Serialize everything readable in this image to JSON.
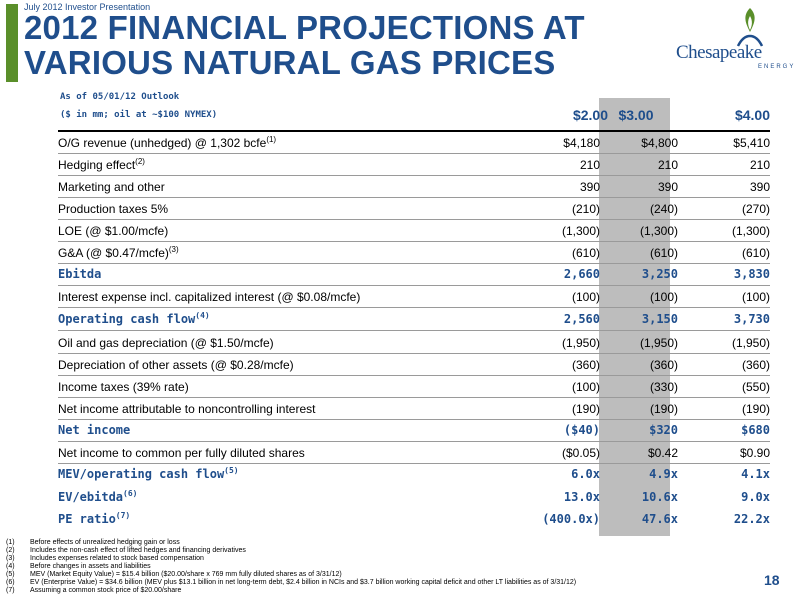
{
  "header": {
    "subhead": "July 2012 Investor Presentation",
    "title_line1": "2012 FINANCIAL PROJECTIONS AT",
    "title_line2": "VARIOUS NATURAL GAS PRICES",
    "logo_word": "Chesapeake",
    "logo_sub": "ENERGY"
  },
  "table": {
    "outlook_line1": "As of 05/01/12 Outlook",
    "outlook_line2": "($ in mm; oil at ~$100 NYMEX)",
    "columns": [
      "$2.00",
      "$3.00",
      "$4.00"
    ],
    "rows": [
      {
        "label": "O/G revenue (unhedged) @ 1,302 bcfe",
        "sup": "(1)",
        "values": [
          "$4,180",
          "$4,800",
          "$5,410"
        ]
      },
      {
        "label": "Hedging effect",
        "sup": "(2)",
        "values": [
          "210",
          "210",
          "210"
        ]
      },
      {
        "label": "Marketing and other",
        "sup": "",
        "values": [
          "390",
          "390",
          "390"
        ]
      },
      {
        "label": "Production taxes 5%",
        "sup": "",
        "values": [
          "(210)",
          "(240)",
          "(270)"
        ]
      },
      {
        "label": "LOE (@ $1.00/mcfe)",
        "sup": "",
        "values": [
          "(1,300)",
          "(1,300)",
          "(1,300)"
        ]
      },
      {
        "label": "G&A (@ $0.47/mcfe)",
        "sup": "(3)",
        "values": [
          "(610)",
          "(610)",
          "(610)"
        ]
      },
      {
        "label": "Ebitda",
        "sup": "",
        "values": [
          "2,660",
          "3,250",
          "3,830"
        ],
        "em": true
      },
      {
        "label": "Interest expense incl. capitalized interest (@ $0.08/mcfe)",
        "sup": "",
        "values": [
          "(100)",
          "(100)",
          "(100)"
        ]
      },
      {
        "label": "Operating cash flow",
        "sup": "(4)",
        "values": [
          "2,560",
          "3,150",
          "3,730"
        ],
        "em": true
      },
      {
        "label": "Oil and gas depreciation (@ $1.50/mcfe)",
        "sup": "",
        "values": [
          "(1,950)",
          "(1,950)",
          "(1,950)"
        ]
      },
      {
        "label": "Depreciation of other assets (@ $0.28/mcfe)",
        "sup": "",
        "values": [
          "(360)",
          "(360)",
          "(360)"
        ]
      },
      {
        "label": "Income taxes (39% rate)",
        "sup": "",
        "values": [
          "(100)",
          "(330)",
          "(550)"
        ]
      },
      {
        "label": "Net income attributable to noncontrolling interest",
        "sup": "",
        "values": [
          "(190)",
          "(190)",
          "(190)"
        ]
      },
      {
        "label": "Net income",
        "sup": "",
        "values": [
          "($40)",
          "$320",
          "$680"
        ],
        "em": true
      },
      {
        "label": "Net income to common per fully diluted shares",
        "sup": "",
        "values": [
          "($0.05)",
          "$0.42",
          "$0.90"
        ]
      },
      {
        "label": "MEV/operating cash flow",
        "sup": "(5)",
        "values": [
          "6.0x",
          "4.9x",
          "4.1x"
        ],
        "em": true,
        "noline": true
      },
      {
        "label": "EV/ebitda",
        "sup": "(6)",
        "values": [
          "13.0x",
          "10.6x",
          "9.0x"
        ],
        "em": true,
        "noline": true
      },
      {
        "label": "PE ratio",
        "sup": "(7)",
        "values": [
          "(400.0x)",
          "47.6x",
          "22.2x"
        ],
        "em": true,
        "noline": true
      }
    ]
  },
  "footnotes": [
    {
      "num": "(1)",
      "text": "Before effects of unrealized hedging gain or loss"
    },
    {
      "num": "(2)",
      "text": "Includes the non-cash effect of lifted hedges and financing derivatives"
    },
    {
      "num": "(3)",
      "text": "Includes expenses related to stock based compensation"
    },
    {
      "num": "(4)",
      "text": "Before changes in assets and liabilities"
    },
    {
      "num": "(5)",
      "text": "MEV (Market Equity Value) = $15.4 billion ($20.00/share x 769 mm fully diluted shares as of 3/31/12)"
    },
    {
      "num": "(6)",
      "text": "EV (Enterprise Value) = $34.6 billion (MEV plus $13.1 billion in net long-term debt, $2.4 billion in NCIs and $3.7 billion working capital deficit and other LT liabilities as of 3/31/12)"
    },
    {
      "num": "(7)",
      "text": "Assuming a common stock price of $20.00/share"
    }
  ],
  "page_number": "18",
  "colors": {
    "brand_blue": "#1f4e8c",
    "accent_green": "#5a8f2a",
    "column_shade": "#bdbdbd"
  }
}
